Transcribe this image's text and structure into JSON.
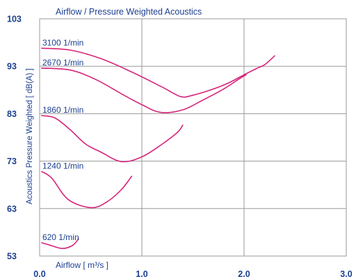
{
  "chart_data": {
    "type": "line",
    "title": "Airflow / Pressure Weighted Acoustics",
    "xlabel": "Airflow [ m³/s ]",
    "ylabel": "Acoustics Pressure Weighted [ dB(A) ]",
    "xlim": [
      0.0,
      3.0
    ],
    "ylim": [
      53,
      103
    ],
    "x_ticks": [
      "0.0",
      "1.0",
      "2.0",
      "3.0"
    ],
    "x_tick_values": [
      0,
      1,
      2,
      3
    ],
    "y_ticks": [
      "53",
      "63",
      "73",
      "83",
      "93",
      "103"
    ],
    "y_tick_values": [
      53,
      63,
      73,
      83,
      93,
      103
    ],
    "grid": true,
    "line_color": "#d6247a",
    "text_color": "#1b3f8f",
    "series": [
      {
        "name": "3100 1/min",
        "points": [
          [
            0.02,
            96.8
          ],
          [
            0.3,
            96.4
          ],
          [
            0.6,
            94.6
          ],
          [
            0.9,
            91.8
          ],
          [
            1.2,
            88.6
          ],
          [
            1.38,
            86.6
          ],
          [
            1.5,
            86.9
          ],
          [
            1.7,
            88.2
          ],
          [
            1.85,
            89.5
          ],
          [
            2.0,
            91.2
          ],
          [
            2.12,
            92.5
          ],
          [
            2.2,
            93.3
          ],
          [
            2.3,
            95.2
          ]
        ]
      },
      {
        "name": "2670 1/min",
        "points": [
          [
            0.02,
            92.6
          ],
          [
            0.3,
            92.2
          ],
          [
            0.55,
            90.2
          ],
          [
            0.8,
            87.2
          ],
          [
            1.0,
            84.9
          ],
          [
            1.18,
            83.3
          ],
          [
            1.4,
            83.8
          ],
          [
            1.6,
            85.9
          ],
          [
            1.8,
            88.2
          ],
          [
            1.95,
            90.3
          ],
          [
            2.02,
            91.2
          ]
        ]
      },
      {
        "name": "1860 1/min",
        "points": [
          [
            0.02,
            82.6
          ],
          [
            0.15,
            82.1
          ],
          [
            0.3,
            79.6
          ],
          [
            0.45,
            76.6
          ],
          [
            0.6,
            74.9
          ],
          [
            0.8,
            72.9
          ],
          [
            1.0,
            73.9
          ],
          [
            1.2,
            76.6
          ],
          [
            1.35,
            79.1
          ],
          [
            1.4,
            80.6
          ]
        ]
      },
      {
        "name": "1240 1/min",
        "points": [
          [
            0.02,
            70.8
          ],
          [
            0.12,
            69.4
          ],
          [
            0.28,
            64.9
          ],
          [
            0.5,
            63.2
          ],
          [
            0.65,
            64.3
          ],
          [
            0.8,
            67.0
          ],
          [
            0.9,
            69.8
          ]
        ]
      },
      {
        "name": "620 1/min",
        "points": [
          [
            0.02,
            55.8
          ],
          [
            0.1,
            55.3
          ],
          [
            0.22,
            54.6
          ],
          [
            0.32,
            55.2
          ],
          [
            0.38,
            56.6
          ]
        ]
      }
    ]
  }
}
